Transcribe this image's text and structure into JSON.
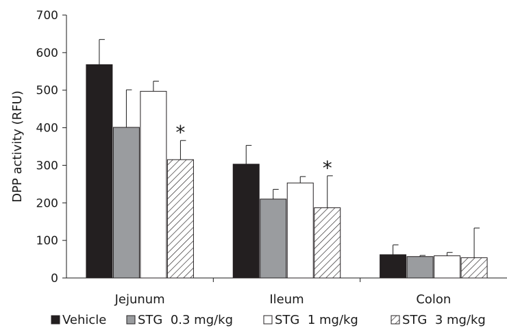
{
  "chart_data": {
    "type": "bar",
    "ylabel": "DPP activity (RFU)",
    "ylim": [
      0,
      700
    ],
    "yticks": [
      0,
      100,
      200,
      300,
      400,
      500,
      600,
      700
    ],
    "categories": [
      "Jejunum",
      "Ileum",
      "Colon"
    ],
    "series": [
      {
        "name": "Vehicle",
        "fill": "#231f20",
        "pattern": "solid",
        "values": [
          568,
          303,
          62
        ],
        "errors": [
          67,
          50,
          26
        ]
      },
      {
        "name": "STG  0.3 mg/kg",
        "fill": "#9a9c9f",
        "pattern": "solid",
        "values": [
          401,
          210,
          57
        ],
        "errors": [
          100,
          26,
          3
        ]
      },
      {
        "name": "STG  1 mg/kg",
        "fill": "#ffffff",
        "pattern": "solid",
        "values": [
          497,
          253,
          59
        ],
        "errors": [
          27,
          17,
          9
        ]
      },
      {
        "name": "STG  3 mg/kg",
        "fill": "#ffffff",
        "pattern": "hatch",
        "values": [
          315,
          187,
          54
        ],
        "errors": [
          51,
          85,
          79
        ]
      }
    ],
    "annotations": [
      {
        "text": "*",
        "category": "Jejunum",
        "series": "STG  3 mg/kg"
      },
      {
        "text": "*",
        "category": "Ileum",
        "series": "STG  3 mg/kg"
      }
    ],
    "grid": false,
    "legend_position": "bottom"
  }
}
